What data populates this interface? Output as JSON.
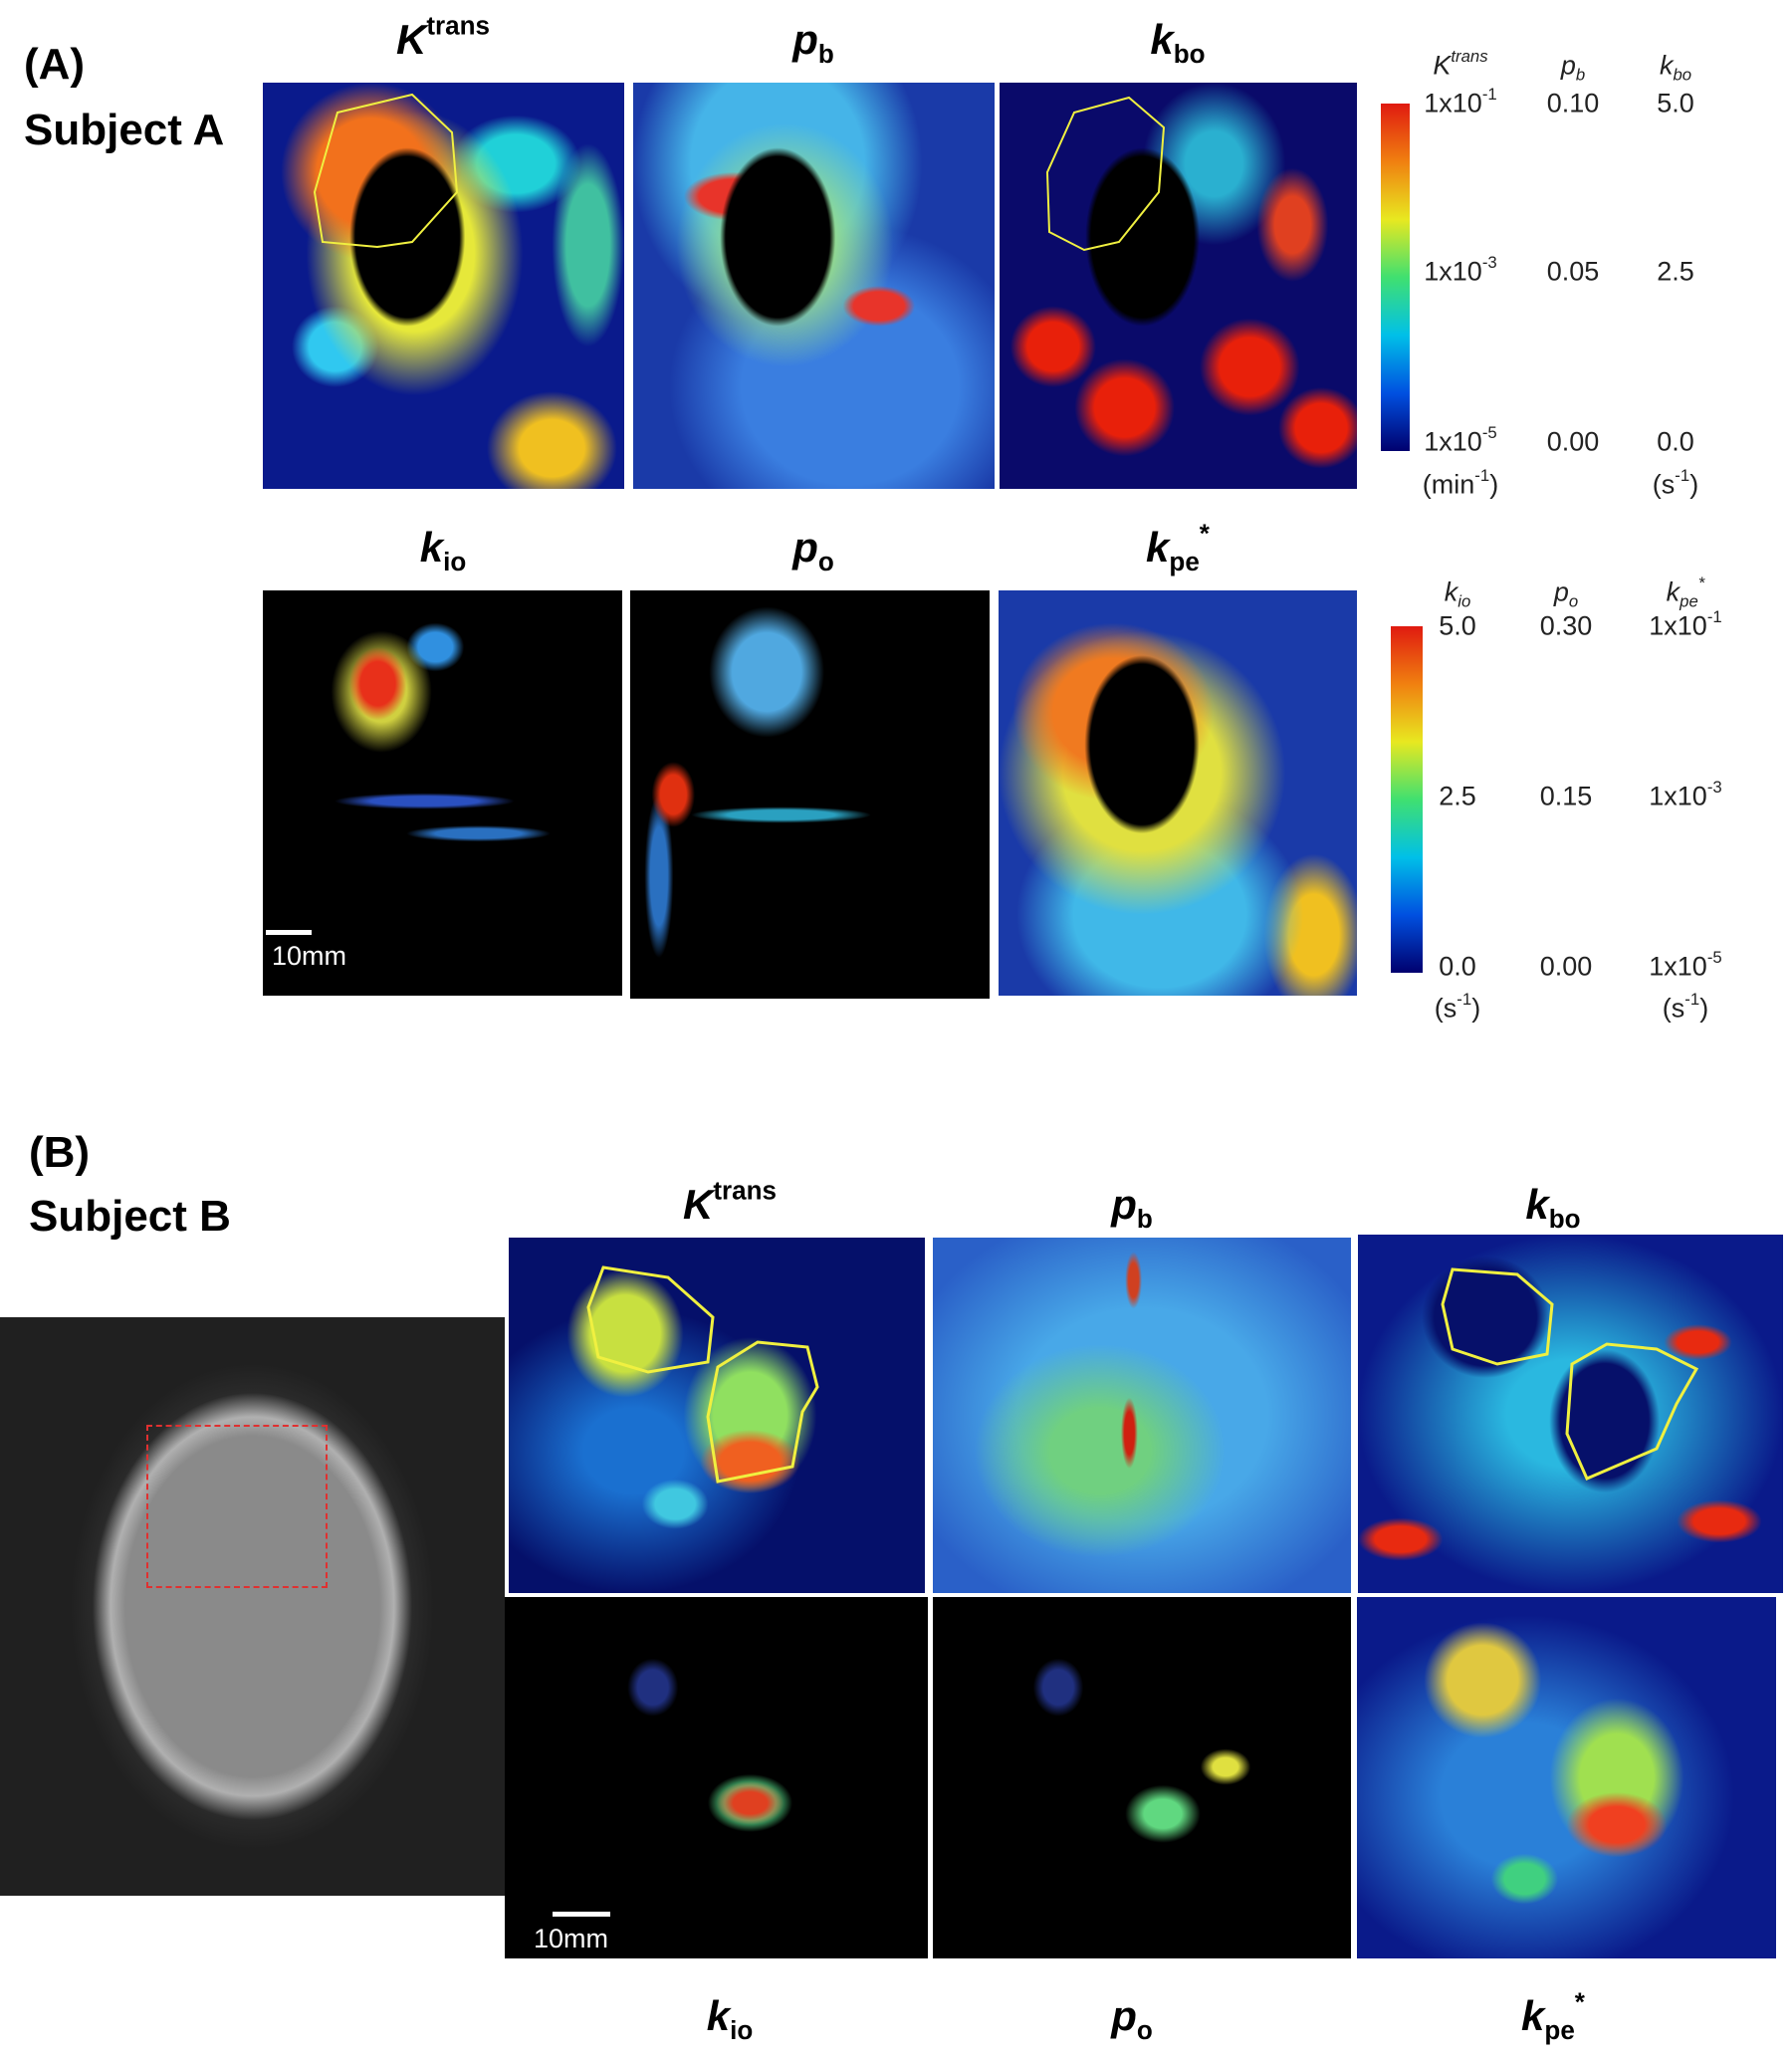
{
  "panel_a": {
    "label": "(A)",
    "subject": "Subject A",
    "maps": [
      [
        {
          "text": "K"
        },
        {
          "text": "trans",
          "pos": "sup"
        }
      ],
      [
        {
          "text": "p"
        },
        {
          "text": "b",
          "pos": "sub"
        }
      ],
      [
        {
          "text": "k"
        },
        {
          "text": "bo",
          "pos": "sub"
        }
      ],
      [
        {
          "text": "k"
        },
        {
          "text": "io",
          "pos": "sub"
        }
      ],
      [
        {
          "text": "p"
        },
        {
          "text": "o",
          "pos": "sub"
        }
      ],
      [
        {
          "text": "k"
        },
        {
          "text": "pe",
          "pos": "sub"
        },
        {
          "text": "*",
          "pos": "sup"
        }
      ]
    ],
    "colorbars": [
      {
        "columns": [
          {
            "header": [
              {
                "text": "K"
              },
              {
                "text": "trans",
                "pos": "sup"
              }
            ],
            "ticks": [
              [
                {
                  "text": "1x10"
                },
                {
                  "text": "-1",
                  "pos": "sup"
                }
              ],
              [
                {
                  "text": "1x10"
                },
                {
                  "text": "-3",
                  "pos": "sup"
                }
              ],
              [
                {
                  "text": "1x10"
                },
                {
                  "text": "-5",
                  "pos": "sup"
                }
              ]
            ],
            "unit": [
              {
                "text": "(min"
              },
              {
                "text": "-1",
                "pos": "sup"
              },
              {
                "text": ")"
              }
            ]
          },
          {
            "header": [
              {
                "text": "p"
              },
              {
                "text": "b",
                "pos": "sub"
              }
            ],
            "ticks": [
              [
                {
                  "text": "0.10"
                }
              ],
              [
                {
                  "text": "0.05"
                }
              ],
              [
                {
                  "text": "0.00"
                }
              ]
            ]
          },
          {
            "header": [
              {
                "text": "k"
              },
              {
                "text": "bo",
                "pos": "sub"
              }
            ],
            "ticks": [
              [
                {
                  "text": "5.0"
                }
              ],
              [
                {
                  "text": "2.5"
                }
              ],
              [
                {
                  "text": "0.0"
                }
              ]
            ],
            "unit": [
              {
                "text": "(s"
              },
              {
                "text": "-1",
                "pos": "sup"
              },
              {
                "text": ")"
              }
            ]
          }
        ]
      },
      {
        "columns": [
          {
            "header": [
              {
                "text": "k"
              },
              {
                "text": "io",
                "pos": "sub"
              }
            ],
            "ticks": [
              [
                {
                  "text": "5.0"
                }
              ],
              [
                {
                  "text": "2.5"
                }
              ],
              [
                {
                  "text": "0.0"
                }
              ]
            ],
            "unit": [
              {
                "text": "(s"
              },
              {
                "text": "-1",
                "pos": "sup"
              },
              {
                "text": ")"
              }
            ]
          },
          {
            "header": [
              {
                "text": "p"
              },
              {
                "text": "o",
                "pos": "sub"
              }
            ],
            "ticks": [
              [
                {
                  "text": "0.30"
                }
              ],
              [
                {
                  "text": "0.15"
                }
              ],
              [
                {
                  "text": "0.00"
                }
              ]
            ]
          },
          {
            "header": [
              {
                "text": "k"
              },
              {
                "text": "pe",
                "pos": "sub"
              },
              {
                "text": "*",
                "pos": "sup"
              }
            ],
            "ticks": [
              [
                {
                  "text": "1x10"
                },
                {
                  "text": "-1",
                  "pos": "sup"
                }
              ],
              [
                {
                  "text": "1x10"
                },
                {
                  "text": "-3",
                  "pos": "sup"
                }
              ],
              [
                {
                  "text": "1x10"
                },
                {
                  "text": "-5",
                  "pos": "sup"
                }
              ]
            ],
            "unit": [
              {
                "text": "(s"
              },
              {
                "text": "-1",
                "pos": "sup"
              },
              {
                "text": ")"
              }
            ]
          }
        ]
      }
    ],
    "scale_bar": "10mm"
  },
  "panel_b": {
    "label": "(B)",
    "subject": "Subject B",
    "maps": [
      [
        {
          "text": "K"
        },
        {
          "text": "trans",
          "pos": "sup"
        }
      ],
      [
        {
          "text": "p"
        },
        {
          "text": "b",
          "pos": "sub"
        }
      ],
      [
        {
          "text": "k"
        },
        {
          "text": "bo",
          "pos": "sub"
        }
      ],
      [
        {
          "text": "k"
        },
        {
          "text": "io",
          "pos": "sub"
        }
      ],
      [
        {
          "text": "p"
        },
        {
          "text": "o",
          "pos": "sub"
        }
      ],
      [
        {
          "text": "k"
        },
        {
          "text": "pe",
          "pos": "sub"
        },
        {
          "text": "*",
          "pos": "sup"
        }
      ]
    ],
    "scale_bar": "10mm"
  }
}
